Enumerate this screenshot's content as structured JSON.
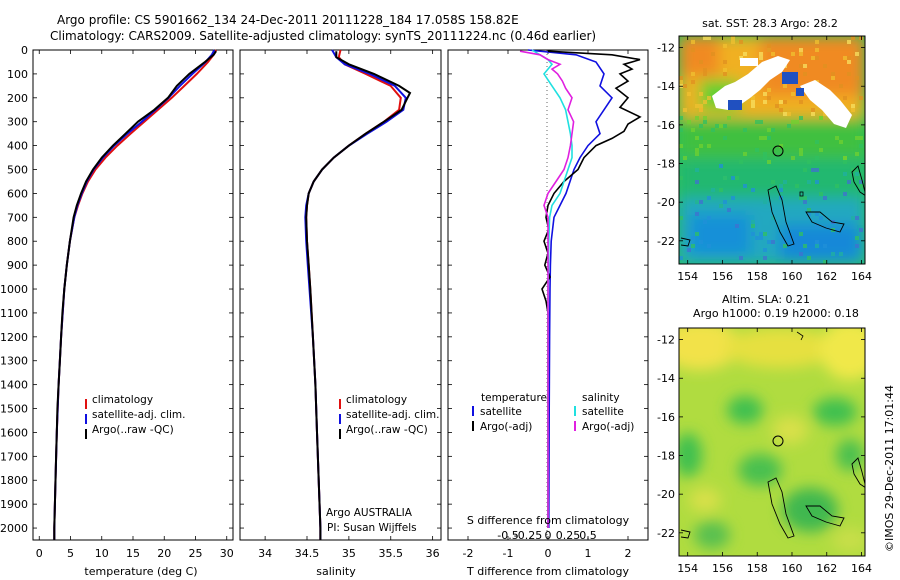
{
  "header": {
    "line1": "Argo profile: CS 5901662_134 24-Dec-2011 20111228_184 17.058S 158.82E",
    "line2": "Climatology: CARS2009. Satellite-adjusted climatology: synTS_20111224.nc (0.46d earlier)"
  },
  "colors": {
    "clim": "#e01010",
    "sat": "#1010e0",
    "argo": "#000000",
    "sal_sat": "#20e0e0",
    "sal_argo": "#e020e0"
  },
  "chart_data": [
    {
      "id": "temperature",
      "type": "line",
      "title": "",
      "xlabel": "temperature (deg C)",
      "ylabel": "",
      "xlim": [
        -1,
        31
      ],
      "ylim": [
        2050,
        0
      ],
      "xticks": [
        "0",
        "5",
        "10",
        "15",
        "20",
        "25",
        "30"
      ],
      "xtick_values": [
        0,
        5,
        10,
        15,
        20,
        25,
        30
      ],
      "yticks": [
        "0",
        "100",
        "200",
        "300",
        "400",
        "500",
        "600",
        "700",
        "800",
        "900",
        "1000",
        "1100",
        "1200",
        "1300",
        "1400",
        "1500",
        "1600",
        "1700",
        "1800",
        "1900",
        "2000"
      ],
      "ytick_values": [
        0,
        100,
        200,
        300,
        400,
        500,
        600,
        700,
        800,
        900,
        1000,
        1100,
        1200,
        1300,
        1400,
        1500,
        1600,
        1700,
        1800,
        1900,
        2000
      ],
      "legend": [
        "climatology",
        "satellite-adj. clim.",
        "Argo(..raw -QC)"
      ],
      "series": [
        {
          "name": "climatology",
          "color": "clim",
          "depth": [
            0,
            20,
            50,
            100,
            150,
            200,
            250,
            300,
            350,
            400,
            450,
            500,
            550,
            600,
            650,
            700,
            800,
            900,
            1000,
            1200,
            1400,
            1600,
            1800,
            2000,
            2050
          ],
          "values": [
            28.3,
            27.9,
            27.0,
            25.2,
            23.2,
            21.2,
            19.0,
            16.8,
            14.6,
            12.5,
            10.6,
            9.0,
            7.8,
            6.9,
            6.2,
            5.6,
            4.9,
            4.4,
            4.0,
            3.5,
            3.1,
            2.8,
            2.6,
            2.4,
            2.4
          ]
        },
        {
          "name": "satellite-adj. clim.",
          "color": "sat",
          "depth": [
            0,
            20,
            50,
            100,
            150,
            200,
            250,
            300,
            350,
            400,
            450,
            500,
            550,
            600,
            650,
            700,
            800,
            900,
            1000,
            1200,
            1400,
            1600,
            1800,
            2000,
            2050
          ],
          "values": [
            28.0,
            27.6,
            26.6,
            24.5,
            22.5,
            20.7,
            18.6,
            16.4,
            14.1,
            12.0,
            10.2,
            8.7,
            7.6,
            6.8,
            6.1,
            5.6,
            4.9,
            4.4,
            4.0,
            3.5,
            3.1,
            2.8,
            2.6,
            2.4,
            2.4
          ]
        },
        {
          "name": "Argo(..raw -QC)",
          "color": "argo",
          "depth": [
            5,
            20,
            50,
            100,
            150,
            200,
            250,
            300,
            350,
            400,
            450,
            500,
            550,
            600,
            650,
            700,
            800,
            900,
            1000,
            1100,
            1200,
            1300,
            1400,
            1500,
            1600,
            1700,
            1800,
            1900,
            2000,
            2050
          ],
          "values": [
            28.3,
            27.9,
            26.5,
            24.0,
            22.0,
            20.6,
            18.4,
            15.8,
            13.8,
            11.8,
            10.0,
            8.6,
            7.5,
            6.7,
            6.0,
            5.5,
            4.9,
            4.4,
            4.0,
            3.7,
            3.5,
            3.3,
            3.1,
            2.9,
            2.8,
            2.7,
            2.6,
            2.5,
            2.4,
            2.4
          ]
        }
      ]
    },
    {
      "id": "salinity",
      "type": "line",
      "title": "",
      "xlabel": "salinity",
      "xlim": [
        33.7,
        36.1
      ],
      "ylim": [
        2050,
        0
      ],
      "xticks": [
        "34",
        "34.5",
        "35",
        "35.5",
        "36"
      ],
      "xtick_values": [
        34,
        34.5,
        35,
        35.5,
        36
      ],
      "legend": [
        "climatology",
        "satellite-adj. clim.",
        "Argo(..raw -QC)"
      ],
      "annotation": [
        "Argo AUSTRALIA",
        "PI: Susan Wijffels"
      ],
      "series": [
        {
          "name": "climatology",
          "color": "clim",
          "depth": [
            0,
            30,
            60,
            100,
            150,
            200,
            250,
            300,
            350,
            400,
            450,
            500,
            550,
            600,
            650,
            700,
            800,
            900,
            1000,
            1200,
            1400,
            1600,
            1800,
            2000,
            2050
          ],
          "values": [
            34.9,
            34.88,
            34.95,
            35.2,
            35.5,
            35.62,
            35.6,
            35.42,
            35.2,
            35.0,
            34.82,
            34.68,
            34.58,
            34.52,
            34.5,
            34.49,
            34.5,
            34.52,
            34.54,
            34.57,
            34.6,
            34.62,
            34.64,
            34.66,
            34.66
          ]
        },
        {
          "name": "satellite-adj. clim.",
          "color": "sat",
          "depth": [
            0,
            30,
            60,
            100,
            150,
            200,
            250,
            300,
            350,
            400,
            450,
            500,
            550,
            600,
            650,
            700,
            800,
            900,
            1000,
            1200,
            1400,
            1600,
            1800,
            2000,
            2050
          ],
          "values": [
            34.8,
            34.85,
            34.95,
            35.25,
            35.55,
            35.68,
            35.65,
            35.45,
            35.22,
            35.0,
            34.82,
            34.68,
            34.58,
            34.52,
            34.49,
            34.48,
            34.49,
            34.51,
            34.53,
            34.57,
            34.6,
            34.62,
            34.64,
            34.66,
            34.66
          ]
        },
        {
          "name": "Argo(..raw -QC)",
          "color": "argo",
          "depth": [
            5,
            30,
            60,
            100,
            150,
            180,
            200,
            250,
            300,
            350,
            400,
            450,
            500,
            550,
            600,
            650,
            700,
            800,
            900,
            1000,
            1200,
            1400,
            1600,
            1800,
            2000,
            2050
          ],
          "values": [
            34.85,
            34.85,
            35.0,
            35.3,
            35.6,
            35.73,
            35.7,
            35.63,
            35.42,
            35.2,
            35.0,
            34.82,
            34.68,
            34.58,
            34.52,
            34.5,
            34.49,
            34.5,
            34.52,
            34.54,
            34.57,
            34.6,
            34.62,
            34.64,
            34.66,
            34.66
          ]
        }
      ]
    },
    {
      "id": "difference",
      "type": "line",
      "title": "",
      "xlabel": "T difference from climatology",
      "xlabel2": "S difference from climatology",
      "xlim": [
        -2.5,
        2.5
      ],
      "ylim": [
        2050,
        0
      ],
      "xticks": [
        "-2",
        "-1",
        "0",
        "1",
        "2"
      ],
      "xtick_values": [
        -2,
        -1,
        0,
        1,
        2
      ],
      "sticks": [
        "-0.5",
        "-0.25",
        "0",
        "0.25",
        "0.5"
      ],
      "stick_values": [
        -0.5,
        -0.25,
        0,
        0.25,
        0.5
      ],
      "legend_headers": [
        "temperature",
        "salinity"
      ],
      "legend": [
        "satellite",
        "Argo(-adj)",
        "satellite",
        "Argo(-adj)"
      ],
      "series": [
        {
          "name": "T satellite",
          "color": "sat",
          "depth": [
            0,
            20,
            50,
            100,
            150,
            200,
            250,
            300,
            350,
            400,
            450,
            500,
            550,
            600,
            650,
            700,
            800,
            900,
            1000,
            1200,
            1500,
            2000
          ],
          "values": [
            -0.5,
            0.7,
            1.2,
            1.4,
            1.3,
            1.6,
            1.4,
            1.2,
            1.3,
            1.0,
            0.8,
            0.65,
            0.55,
            0.45,
            0.3,
            0.15,
            0.08,
            0.06,
            0.05,
            0.04,
            0.03,
            0.02
          ]
        },
        {
          "name": "T Argo(-adj)",
          "color": "argo",
          "depth": [
            5,
            20,
            40,
            60,
            80,
            100,
            130,
            160,
            200,
            240,
            280,
            310,
            340,
            370,
            400,
            450,
            500,
            550,
            600,
            650,
            700,
            750,
            800,
            850,
            900,
            950,
            1000,
            1050,
            1100,
            1200,
            1500,
            2000
          ],
          "values": [
            0.0,
            1.6,
            2.3,
            1.9,
            2.1,
            1.8,
            2.0,
            1.7,
            2.0,
            1.8,
            2.3,
            2.0,
            1.9,
            1.6,
            1.2,
            0.9,
            0.75,
            0.4,
            0.15,
            0.0,
            -0.05,
            0.02,
            -0.1,
            0.0,
            -0.08,
            0.05,
            -0.15,
            -0.05,
            0.0,
            0.0,
            0.0,
            0.0
          ]
        },
        {
          "name": "S satellite",
          "color": "sal_sat",
          "depth": [
            0,
            20,
            40,
            60,
            100,
            150,
            200,
            250,
            300,
            350,
            400,
            450,
            500,
            550,
            600,
            650,
            700,
            800,
            1000,
            1500,
            2000
          ],
          "values": [
            -0.2,
            -0.1,
            0.0,
            0.05,
            -0.05,
            0.05,
            0.15,
            0.22,
            0.25,
            0.28,
            0.3,
            0.3,
            0.25,
            0.2,
            0.15,
            0.05,
            0.02,
            0.01,
            0.0,
            0.0,
            0.0
          ]
        },
        {
          "name": "S Argo(-adj)",
          "color": "sal_argo",
          "depth": [
            5,
            20,
            40,
            60,
            80,
            100,
            130,
            160,
            200,
            250,
            300,
            350,
            400,
            450,
            500,
            550,
            600,
            650,
            700,
            800,
            1000,
            1500,
            2000
          ],
          "values": [
            -0.35,
            -0.1,
            0.0,
            0.15,
            0.05,
            0.12,
            0.18,
            0.22,
            0.3,
            0.25,
            0.32,
            0.3,
            0.28,
            0.25,
            0.2,
            0.1,
            0.0,
            -0.05,
            0.0,
            0.0,
            0.0,
            0.0,
            0.0
          ]
        }
      ]
    },
    {
      "id": "sst_map",
      "type": "heatmap",
      "title": "sat. SST: 28.3 Argo: 28.2",
      "xticks": [
        "154",
        "156",
        "158",
        "160",
        "162",
        "164"
      ],
      "yticks": [
        "-12",
        "-14",
        "-16",
        "-18",
        "-20",
        "-22"
      ],
      "xlim": [
        153.5,
        164.2
      ],
      "ylim": [
        -23.2,
        -11.4
      ]
    },
    {
      "id": "sla_map",
      "type": "heatmap",
      "title": "Altim. SLA: 0.21",
      "subtitle": "Argo h1000: 0.19 h2000: 0.18",
      "xticks": [
        "154",
        "156",
        "158",
        "160",
        "162",
        "164"
      ],
      "yticks": [
        "-12",
        "-14",
        "-16",
        "-18",
        "-20",
        "-22"
      ],
      "xlim": [
        153.5,
        164.2
      ],
      "ylim": [
        -23.2,
        -11.4
      ]
    }
  ],
  "footer": {
    "imos": "©IMOS 29-Dec-2011 17:01:44"
  }
}
